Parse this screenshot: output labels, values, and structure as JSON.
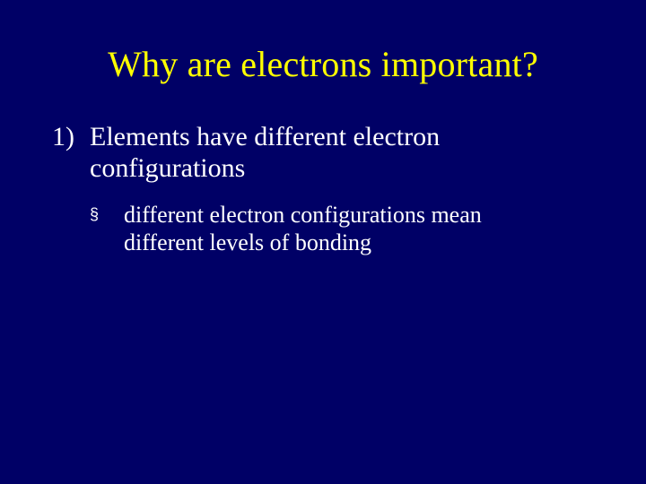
{
  "slide": {
    "background_color": "#000066",
    "title": {
      "text": "Why are electrons important?",
      "color": "#ffff00",
      "font_family": "Times New Roman",
      "font_size_pt": 40
    },
    "body": {
      "text_color": "#ffffff",
      "font_family": "Times New Roman",
      "items": [
        {
          "marker": "1)",
          "text": "Elements have different electron configurations",
          "font_size_pt": 30,
          "subitems": [
            {
              "marker": "§",
              "text": "different electron configurations mean different levels of bonding",
              "font_size_pt": 26
            }
          ]
        }
      ]
    }
  }
}
